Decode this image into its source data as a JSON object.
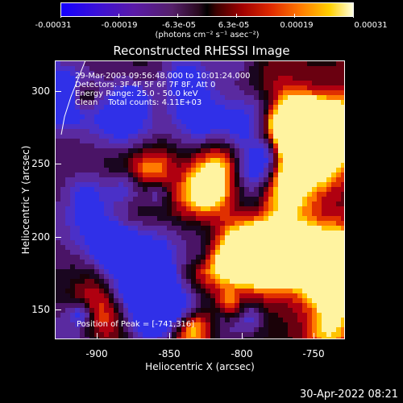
{
  "colorbar": {
    "tick_labels": [
      "-0.00031",
      "-0.00019",
      "-6.3e-05",
      "6.3e-05",
      "0.00019",
      "0.00031"
    ],
    "units": "(photons cm⁻² s⁻¹ asec⁻²)",
    "colors": [
      "#1400ff",
      "#5a1aa8",
      "#000000",
      "#a00000",
      "#ff7a00",
      "#ffd000",
      "#ffffe0"
    ]
  },
  "title": "Reconstructed RHESSI Image",
  "info": {
    "time": "29-Mar-2003 09:56:48.000 to 10:01:24.000",
    "detectors": "Detectors: 3F 4F 5F 6F 7F 8F, Att 0",
    "energy": "Energy Range: 25.0 - 50.0 keV",
    "method": "Clean    Total counts: 4.11E+03",
    "peak": "Position of Peak = [-741,316]"
  },
  "axes": {
    "x_label": "Heliocentric X (arcsec)",
    "y_label": "Heliocentric Y (arcsec)",
    "x_ticks": [
      "-900",
      "-850",
      "-800",
      "-750"
    ],
    "y_ticks": [
      "300",
      "250",
      "200",
      "150"
    ]
  },
  "timestamp": "30-Apr-2022 08:21"
}
